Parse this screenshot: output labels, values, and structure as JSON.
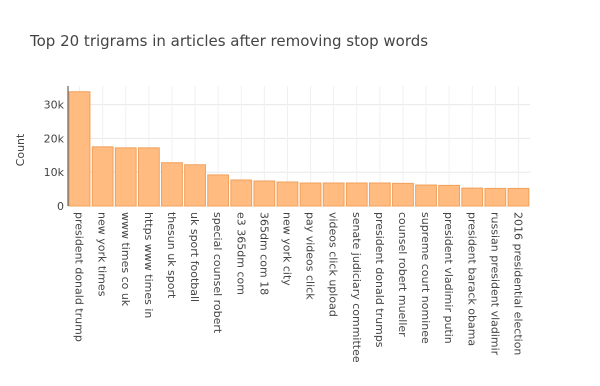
{
  "chart_data": {
    "type": "bar",
    "title": "Top 20 trigrams in articles after removing stop words",
    "y_label": "Count",
    "categories": [
      "president donald trump",
      "new york times",
      "www times co uk",
      "https www times in",
      "thesun uk sport",
      "uk sport football",
      "special counsel robert",
      "e3 365dm com",
      "365dm com 18",
      "new york city",
      "pay videos click",
      "videos click upload",
      "senate judiciary committee",
      "president donald trumps",
      "counsel robert mueller",
      "supreme court nominee",
      "president vladimir putin",
      "president barack obama",
      "russian president vladimir",
      "2016 presidential election"
    ],
    "values": [
      33800,
      17500,
      17200,
      17200,
      12800,
      12200,
      9200,
      7700,
      7400,
      7100,
      6800,
      6800,
      6800,
      6800,
      6700,
      6200,
      6100,
      5300,
      5200,
      5200
    ],
    "color": "#ffbb80",
    "edge_color": "#f0a05a",
    "ylim": [
      0,
      35500
    ],
    "yticks": [
      0,
      {
        "value": 10000,
        "label": "10k"
      },
      {
        "value": 20000,
        "label": "20k"
      },
      {
        "value": 30000,
        "label": "30k"
      }
    ],
    "grid": true
  }
}
